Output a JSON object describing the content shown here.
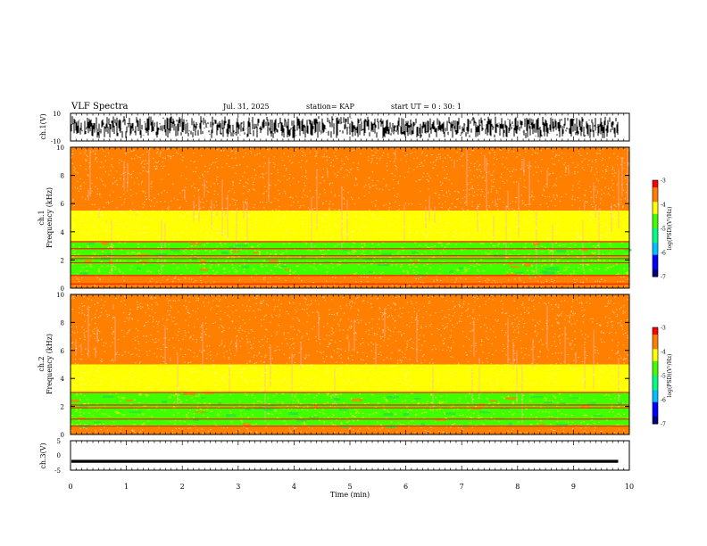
{
  "header": {
    "title": "VLF Spectra",
    "date": "Jul. 31, 2025",
    "station": "station= KAP",
    "start": "start UT =  0 : 30: 1"
  },
  "chart_data": [
    {
      "id": "ch1-waveform",
      "type": "line",
      "ylabel": "ch.1(V)",
      "ylim": [
        -10,
        10
      ],
      "yticks": [
        "10",
        "-10"
      ],
      "xlim": [
        0,
        10
      ],
      "note": "noisy waveform, approx. -8 V to +8 V, data ends near 9.8 min",
      "envelope": {
        "min": -8,
        "max": 8,
        "end_time": 9.8
      }
    },
    {
      "id": "ch1-spectrogram",
      "type": "heatmap",
      "ylabel": "ch.1",
      "ylabel2": "Frequency (kHz)",
      "ylim": [
        0,
        10
      ],
      "yticks": [
        "0",
        "2",
        "4",
        "6",
        "8",
        "10"
      ],
      "xlim": [
        0,
        10
      ],
      "bands_khz": [
        {
          "from": 0,
          "to": 0.9,
          "level": -3.6
        },
        {
          "from": 0.9,
          "to": 3.3,
          "level": -4.8
        },
        {
          "from": 3.3,
          "to": 5.5,
          "level": -3.9
        },
        {
          "from": 5.5,
          "to": 10,
          "level": -3.4
        }
      ],
      "lines_khz": [
        0.3,
        0.9,
        1.8,
        2.1,
        2.3,
        2.8,
        3.3
      ],
      "colorbar": {
        "label": "log(PSD)(V²/Hz)",
        "range": [
          -7,
          -3
        ],
        "ticks": [
          "-3",
          "-4",
          "-5",
          "-6",
          "-7"
        ]
      }
    },
    {
      "id": "ch2-spectrogram",
      "type": "heatmap",
      "ylabel": "ch.2",
      "ylabel2": "Frequency (kHz)",
      "ylim": [
        0,
        10
      ],
      "yticks": [
        "0",
        "2",
        "4",
        "6",
        "8",
        "10"
      ],
      "xlim": [
        0,
        10
      ],
      "bands_khz": [
        {
          "from": 0,
          "to": 0.6,
          "level": -3.6
        },
        {
          "from": 0.6,
          "to": 3.0,
          "level": -4.9
        },
        {
          "from": 3.0,
          "to": 5.0,
          "level": -3.9
        },
        {
          "from": 5.0,
          "to": 10,
          "level": -3.4
        }
      ],
      "lines_khz": [
        0.6,
        1.1,
        1.9,
        2.1,
        3.0
      ],
      "colorbar": {
        "label": "log(PSD)(V²/Hz)",
        "range": [
          -7,
          -3
        ],
        "ticks": [
          "-3",
          "-4",
          "-5",
          "-6",
          "-7"
        ]
      }
    },
    {
      "id": "ch3-waveform",
      "type": "line",
      "ylabel": "ch.3(V)",
      "ylim": [
        -5,
        5
      ],
      "yticks": [
        "5",
        "0",
        "-5"
      ],
      "xlim": [
        0,
        10
      ],
      "xlabel": "Time (min)",
      "xticks": [
        "0",
        "1",
        "2",
        "3",
        "4",
        "5",
        "6",
        "7",
        "8",
        "9",
        "10"
      ],
      "note": "flat band approx. -1.5 V to -2.5 V, data ends near 9.8 min",
      "envelope": {
        "min": -2.5,
        "max": -1.5,
        "end_time": 9.8
      }
    }
  ],
  "colors": {
    "cmap": [
      "#000080",
      "#0000ff",
      "#00c0ff",
      "#00ff80",
      "#40ff00",
      "#ffff00",
      "#ff8000",
      "#ff0000",
      "#ffffff"
    ]
  }
}
